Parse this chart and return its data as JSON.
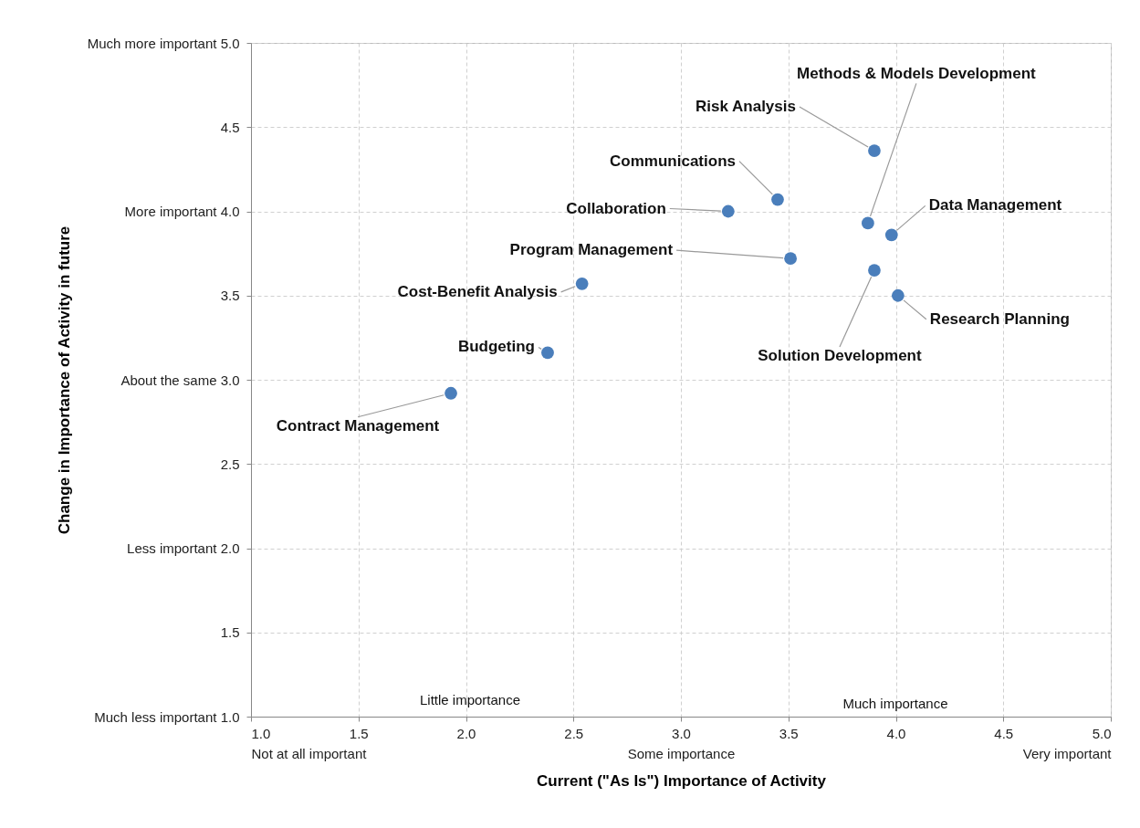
{
  "chart_data": {
    "type": "scatter",
    "xlabel": "Current (\"As Is\") Importance of Activity",
    "ylabel": "Change in Importance of Activity in future",
    "x": [
      3.9,
      3.87,
      3.98,
      3.45,
      3.22,
      3.51,
      3.9,
      4.01,
      2.54,
      2.38,
      1.93
    ],
    "values": [
      4.36,
      3.93,
      3.86,
      4.07,
      4.0,
      3.72,
      3.65,
      3.5,
      3.57,
      3.16,
      2.92
    ],
    "color": "#4a7ebb",
    "marker": "circle",
    "grid": true,
    "xlim": [
      1,
      5
    ],
    "ylim": [
      1,
      5
    ],
    "xticks": [
      {
        "value": 1,
        "label": "1.0\nNot at all important"
      },
      {
        "value": 1.5,
        "label": "1.5"
      },
      {
        "value": 2,
        "label": "2.0"
      },
      {
        "value": 2.5,
        "label": "2.5"
      },
      {
        "value": 3,
        "label": "3.0\nSome importance"
      },
      {
        "value": 3.5,
        "label": "3.5"
      },
      {
        "value": 4,
        "label": "4.0"
      },
      {
        "value": 4.5,
        "label": "4.5"
      },
      {
        "value": 5,
        "label": "5.0\nVery important"
      }
    ],
    "yticks": [
      {
        "value": 1,
        "label": "Much less important 1.0"
      },
      {
        "value": 1.5,
        "label": "1.5"
      },
      {
        "value": 2,
        "label": "Less important 2.0"
      },
      {
        "value": 2.5,
        "label": "2.5"
      },
      {
        "value": 3,
        "label": "About the same 3.0"
      },
      {
        "value": 3.5,
        "label": "3.5"
      },
      {
        "value": 4,
        "label": "More important 4.0"
      },
      {
        "value": 4.5,
        "label": "4.5"
      },
      {
        "value": 5,
        "label": "Much more important 5.0"
      }
    ],
    "annotations": [
      {
        "text": "Risk Analysis",
        "x": 3.9,
        "y": 4.36
      },
      {
        "text": "Methods & Models Development",
        "x": 3.87,
        "y": 3.93
      },
      {
        "text": "Data Management",
        "x": 3.98,
        "y": 3.86
      },
      {
        "text": "Communications",
        "x": 3.45,
        "y": 4.07
      },
      {
        "text": "Collaboration",
        "x": 3.22,
        "y": 4.0
      },
      {
        "text": "Program Management",
        "x": 3.51,
        "y": 3.72
      },
      {
        "text": "Solution Development",
        "x": 3.9,
        "y": 3.65
      },
      {
        "text": "Research Planning",
        "x": 4.01,
        "y": 3.5
      },
      {
        "text": "Cost-Benefit Analysis",
        "x": 2.54,
        "y": 3.57
      },
      {
        "text": "Budgeting",
        "x": 2.38,
        "y": 3.16
      },
      {
        "text": "Contract Management",
        "x": 1.93,
        "y": 2.92
      },
      "Little importance",
      "Much importance"
    ]
  }
}
